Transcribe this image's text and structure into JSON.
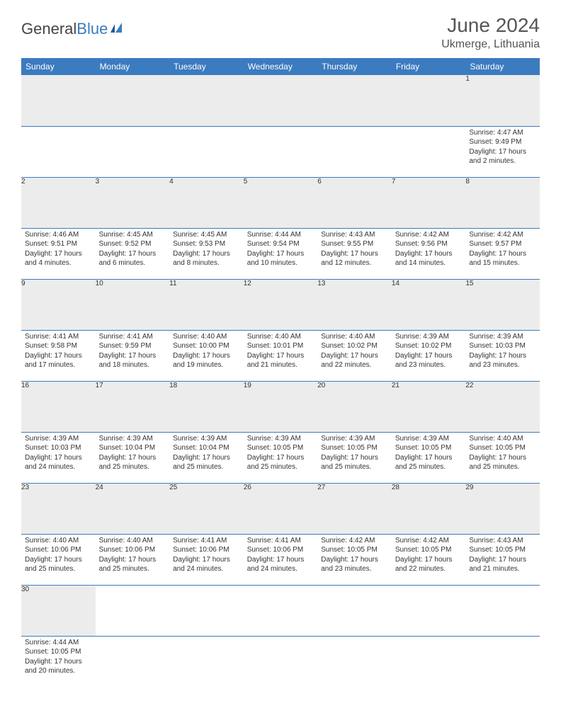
{
  "logo": {
    "text1": "General",
    "text2": "Blue"
  },
  "title": "June 2024",
  "subtitle": "Ukmerge, Lithuania",
  "colors": {
    "header_bg": "#3b7bbf",
    "header_text": "#ffffff",
    "daynum_bg": "#ececec",
    "border": "#3b7bbf",
    "text": "#333333"
  },
  "daysOfWeek": [
    "Sunday",
    "Monday",
    "Tuesday",
    "Wednesday",
    "Thursday",
    "Friday",
    "Saturday"
  ],
  "weeks": [
    [
      null,
      null,
      null,
      null,
      null,
      null,
      {
        "n": "1",
        "sr": "Sunrise: 4:47 AM",
        "ss": "Sunset: 9:49 PM",
        "d1": "Daylight: 17 hours",
        "d2": "and 2 minutes."
      }
    ],
    [
      {
        "n": "2",
        "sr": "Sunrise: 4:46 AM",
        "ss": "Sunset: 9:51 PM",
        "d1": "Daylight: 17 hours",
        "d2": "and 4 minutes."
      },
      {
        "n": "3",
        "sr": "Sunrise: 4:45 AM",
        "ss": "Sunset: 9:52 PM",
        "d1": "Daylight: 17 hours",
        "d2": "and 6 minutes."
      },
      {
        "n": "4",
        "sr": "Sunrise: 4:45 AM",
        "ss": "Sunset: 9:53 PM",
        "d1": "Daylight: 17 hours",
        "d2": "and 8 minutes."
      },
      {
        "n": "5",
        "sr": "Sunrise: 4:44 AM",
        "ss": "Sunset: 9:54 PM",
        "d1": "Daylight: 17 hours",
        "d2": "and 10 minutes."
      },
      {
        "n": "6",
        "sr": "Sunrise: 4:43 AM",
        "ss": "Sunset: 9:55 PM",
        "d1": "Daylight: 17 hours",
        "d2": "and 12 minutes."
      },
      {
        "n": "7",
        "sr": "Sunrise: 4:42 AM",
        "ss": "Sunset: 9:56 PM",
        "d1": "Daylight: 17 hours",
        "d2": "and 14 minutes."
      },
      {
        "n": "8",
        "sr": "Sunrise: 4:42 AM",
        "ss": "Sunset: 9:57 PM",
        "d1": "Daylight: 17 hours",
        "d2": "and 15 minutes."
      }
    ],
    [
      {
        "n": "9",
        "sr": "Sunrise: 4:41 AM",
        "ss": "Sunset: 9:58 PM",
        "d1": "Daylight: 17 hours",
        "d2": "and 17 minutes."
      },
      {
        "n": "10",
        "sr": "Sunrise: 4:41 AM",
        "ss": "Sunset: 9:59 PM",
        "d1": "Daylight: 17 hours",
        "d2": "and 18 minutes."
      },
      {
        "n": "11",
        "sr": "Sunrise: 4:40 AM",
        "ss": "Sunset: 10:00 PM",
        "d1": "Daylight: 17 hours",
        "d2": "and 19 minutes."
      },
      {
        "n": "12",
        "sr": "Sunrise: 4:40 AM",
        "ss": "Sunset: 10:01 PM",
        "d1": "Daylight: 17 hours",
        "d2": "and 21 minutes."
      },
      {
        "n": "13",
        "sr": "Sunrise: 4:40 AM",
        "ss": "Sunset: 10:02 PM",
        "d1": "Daylight: 17 hours",
        "d2": "and 22 minutes."
      },
      {
        "n": "14",
        "sr": "Sunrise: 4:39 AM",
        "ss": "Sunset: 10:02 PM",
        "d1": "Daylight: 17 hours",
        "d2": "and 23 minutes."
      },
      {
        "n": "15",
        "sr": "Sunrise: 4:39 AM",
        "ss": "Sunset: 10:03 PM",
        "d1": "Daylight: 17 hours",
        "d2": "and 23 minutes."
      }
    ],
    [
      {
        "n": "16",
        "sr": "Sunrise: 4:39 AM",
        "ss": "Sunset: 10:03 PM",
        "d1": "Daylight: 17 hours",
        "d2": "and 24 minutes."
      },
      {
        "n": "17",
        "sr": "Sunrise: 4:39 AM",
        "ss": "Sunset: 10:04 PM",
        "d1": "Daylight: 17 hours",
        "d2": "and 25 minutes."
      },
      {
        "n": "18",
        "sr": "Sunrise: 4:39 AM",
        "ss": "Sunset: 10:04 PM",
        "d1": "Daylight: 17 hours",
        "d2": "and 25 minutes."
      },
      {
        "n": "19",
        "sr": "Sunrise: 4:39 AM",
        "ss": "Sunset: 10:05 PM",
        "d1": "Daylight: 17 hours",
        "d2": "and 25 minutes."
      },
      {
        "n": "20",
        "sr": "Sunrise: 4:39 AM",
        "ss": "Sunset: 10:05 PM",
        "d1": "Daylight: 17 hours",
        "d2": "and 25 minutes."
      },
      {
        "n": "21",
        "sr": "Sunrise: 4:39 AM",
        "ss": "Sunset: 10:05 PM",
        "d1": "Daylight: 17 hours",
        "d2": "and 25 minutes."
      },
      {
        "n": "22",
        "sr": "Sunrise: 4:40 AM",
        "ss": "Sunset: 10:05 PM",
        "d1": "Daylight: 17 hours",
        "d2": "and 25 minutes."
      }
    ],
    [
      {
        "n": "23",
        "sr": "Sunrise: 4:40 AM",
        "ss": "Sunset: 10:06 PM",
        "d1": "Daylight: 17 hours",
        "d2": "and 25 minutes."
      },
      {
        "n": "24",
        "sr": "Sunrise: 4:40 AM",
        "ss": "Sunset: 10:06 PM",
        "d1": "Daylight: 17 hours",
        "d2": "and 25 minutes."
      },
      {
        "n": "25",
        "sr": "Sunrise: 4:41 AM",
        "ss": "Sunset: 10:06 PM",
        "d1": "Daylight: 17 hours",
        "d2": "and 24 minutes."
      },
      {
        "n": "26",
        "sr": "Sunrise: 4:41 AM",
        "ss": "Sunset: 10:06 PM",
        "d1": "Daylight: 17 hours",
        "d2": "and 24 minutes."
      },
      {
        "n": "27",
        "sr": "Sunrise: 4:42 AM",
        "ss": "Sunset: 10:05 PM",
        "d1": "Daylight: 17 hours",
        "d2": "and 23 minutes."
      },
      {
        "n": "28",
        "sr": "Sunrise: 4:42 AM",
        "ss": "Sunset: 10:05 PM",
        "d1": "Daylight: 17 hours",
        "d2": "and 22 minutes."
      },
      {
        "n": "29",
        "sr": "Sunrise: 4:43 AM",
        "ss": "Sunset: 10:05 PM",
        "d1": "Daylight: 17 hours",
        "d2": "and 21 minutes."
      }
    ],
    [
      {
        "n": "30",
        "sr": "Sunrise: 4:44 AM",
        "ss": "Sunset: 10:05 PM",
        "d1": "Daylight: 17 hours",
        "d2": "and 20 minutes."
      },
      null,
      null,
      null,
      null,
      null,
      null
    ]
  ]
}
